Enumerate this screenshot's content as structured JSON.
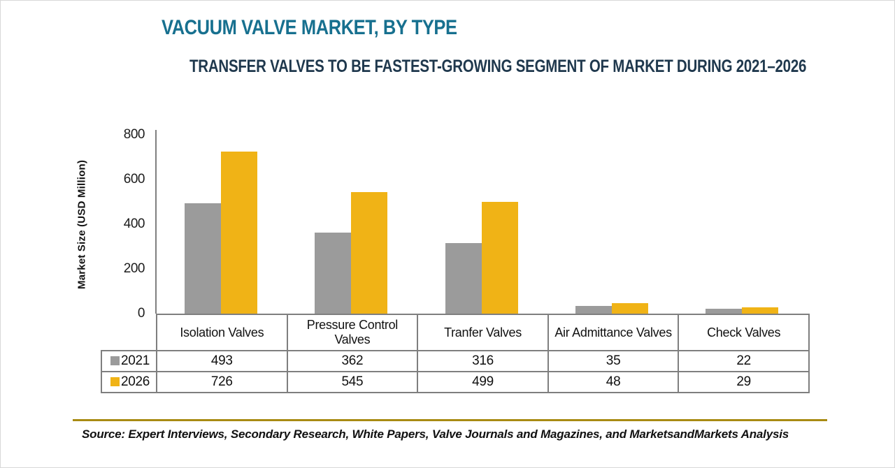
{
  "page": {
    "title": "VACUUM VALVE MARKET, BY TYPE",
    "subtitle": "TRANSFER VALVES TO BE FASTEST-GROWING SEGMENT OF MARKET DURING 2021–2026",
    "source": "Source: Expert Interviews, Secondary Research, White Papers, Valve Journals and Magazines, and MarketsandMarkets Analysis"
  },
  "chart_data": {
    "type": "bar",
    "title": "VACUUM VALVE MARKET, BY TYPE",
    "subtitle": "TRANSFER VALVES TO BE FASTEST-GROWING SEGMENT OF MARKET DURING 2021–2026",
    "categories": [
      "Isolation Valves",
      "Pressure Control Valves",
      "Tranfer Valves",
      "Air Admittance Valves",
      "Check Valves"
    ],
    "series": [
      {
        "name": "2021",
        "color": "#9B9B9B",
        "values": [
          493,
          362,
          316,
          35,
          22
        ]
      },
      {
        "name": "2026",
        "color": "#F0B316",
        "values": [
          726,
          545,
          499,
          48,
          29
        ]
      }
    ],
    "xlabel": "",
    "ylabel": "Market Size (USD Million)",
    "ylim": [
      0,
      800
    ],
    "yticks": [
      0,
      200,
      400,
      600,
      800
    ],
    "grid": false,
    "legend_position": "table-left-column"
  },
  "colors": {
    "title_teal": "#17708F",
    "subtitle_navy": "#1F384D",
    "bar_2021_gray": "#9B9B9B",
    "bar_2026_gold": "#F0B316",
    "axis_gray": "#808080",
    "table_border_gray": "#7F7F7F",
    "divider_gold": "#A88B13"
  }
}
